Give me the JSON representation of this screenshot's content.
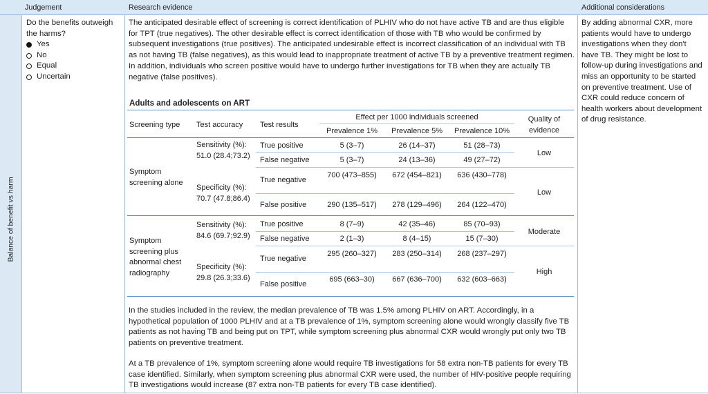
{
  "header": {
    "judgement": "Judgement",
    "research_evidence": "Research evidence",
    "additional_considerations": "Additional considerations"
  },
  "side_label": "Balance of benefit vs harm",
  "judgement": {
    "question": "Do the benefits outweigh the harms?",
    "options": [
      {
        "label": "Yes",
        "selected": true
      },
      {
        "label": "No",
        "selected": false
      },
      {
        "label": "Equal",
        "selected": false
      },
      {
        "label": "Uncertain",
        "selected": false
      }
    ]
  },
  "evidence": {
    "intro": "The anticipated desirable effect of screening is correct identification of PLHIV who do not have active TB and are thus eligible for TPT (true negatives). The other desirable effect is correct identification of those with TB who would be confirmed by subsequent investigations (true positives). The anticipated undesirable effect is incorrect classification of an individual with TB as not having TB (false negatives), as this would lead to inappropriate treatment of active TB by a preventive treatment regimen. In addition, individuals who screen positive would have to undergo further investigations for TB when they are actually TB negative (false positives).",
    "table_title": "Adults and adolescents on ART",
    "table_headers": {
      "screening_type": "Screening type",
      "test_accuracy": "Test accuracy",
      "test_results": "Test results",
      "effect": "Effect per 1000 individuals screened",
      "prev1": "Prevalence 1%",
      "prev5": "Prevalence 5%",
      "prev10": "Prevalence 10%",
      "quality": "Quality of evidence"
    },
    "groups": [
      {
        "type": "Symptom screening alone",
        "sensitivity": "Sensitivity (%): 51.0 (28.4;73.2)",
        "specificity": "Specificity (%): 70.7 (47.8;86.4)",
        "rows": [
          {
            "result": "True positive",
            "p1": "5 (3–7)",
            "p5": "26 (14–37)",
            "p10": "51 (28–73)"
          },
          {
            "result": "False negative",
            "p1": "5 (3–7)",
            "p5": "24 (13–36)",
            "p10": "49 (27–72)"
          },
          {
            "result": "True negative",
            "p1": "700 (473–855)",
            "p5": "672 (454–821)",
            "p10": "636 (430–778)"
          },
          {
            "result": "False positive",
            "p1": "290 (135–517)",
            "p5": "278 (129–496)",
            "p10": "264 (122–470)"
          }
        ],
        "quality_sens": "Low",
        "quality_spec": "Low"
      },
      {
        "type": "Symptom screening plus abnormal chest radiography",
        "sensitivity": "Sensitivity (%): 84.6 (69.7;92.9)",
        "specificity": "Specificity (%): 29.8 (26.3;33.6)",
        "rows": [
          {
            "result": "True positive",
            "p1": "8 (7–9)",
            "p5": "42 (35–46)",
            "p10": "85 (70–93)"
          },
          {
            "result": "False negative",
            "p1": "2 (1–3)",
            "p5": "8 (4–15)",
            "p10": "15 (7–30)"
          },
          {
            "result": "True negative",
            "p1": "295 (260–327)",
            "p5": "283 (250–314)",
            "p10": "268 (237–297)"
          },
          {
            "result": "False positive",
            "p1": "695 (663–30)",
            "p5": "667 (636–700)",
            "p10": "632 (603–663)"
          }
        ],
        "quality_sens": "Moderate",
        "quality_spec": "High"
      }
    ],
    "para2": "In the studies included in the review, the median prevalence of TB was 1.5% among PLHIV on ART. Accordingly, in a hypothetical population of 1000 PLHIV and at a TB prevalence of 1%, symptom screening alone would wrongly classify five TB patients as not having TB and being put on TPT, while symptom screening plus abnormal CXR would wrongly put only two TB patients on preventive treatment.",
    "para3": "At a TB prevalence of 1%, symptom screening alone would require TB investigations for 58 extra non-TB patients for every TB case identified. Similarly, when symptom screening plus abnormal CXR were used, the number of HIV-positive people requiring TB investigations would increase (87 extra non-TB patients for every TB case identified)."
  },
  "additional": "By adding abnormal CXR, more patients would have to undergo investigations when they don't have TB. They might be lost to follow-up during investigations and miss an opportunity to be started on preventive treatment. Use of CXR could reduce concern of health workers about development of drug resistance."
}
